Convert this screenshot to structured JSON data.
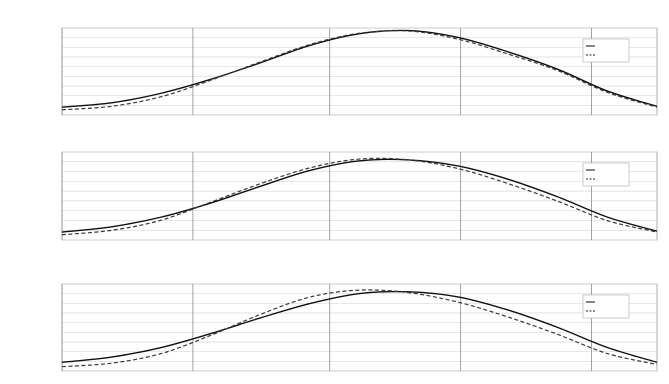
{
  "chart_data": [
    {
      "type": "line",
      "title": "",
      "xlabel": "",
      "ylabel": "",
      "panel_label": "",
      "x": [
        0,
        1,
        2,
        3,
        4,
        5,
        6,
        7,
        8,
        9,
        10,
        11,
        12
      ],
      "ylim": [
        -1,
        1
      ],
      "yticks": [],
      "xtick_labels": [
        "",
        "",
        "",
        ""
      ],
      "series": [
        {
          "name": "",
          "style": "solid",
          "values": [
            -0.82,
            -0.72,
            -0.5,
            -0.18,
            0.2,
            0.6,
            0.87,
            0.94,
            0.78,
            0.45,
            0.05,
            -0.45,
            -0.8
          ]
        },
        {
          "name": "",
          "style": "dashed",
          "values": [
            -0.88,
            -0.8,
            -0.58,
            -0.2,
            0.22,
            0.62,
            0.88,
            0.93,
            0.74,
            0.4,
            0.02,
            -0.48,
            -0.82
          ]
        }
      ]
    },
    {
      "type": "line",
      "title": "",
      "xlabel": "",
      "ylabel": "",
      "panel_label": "",
      "x": [
        0,
        1,
        2,
        3,
        4,
        5,
        6,
        7,
        8,
        9,
        10,
        11,
        12
      ],
      "ylim": [
        -1,
        1
      ],
      "yticks": [],
      "xtick_labels": [
        "",
        "",
        "",
        ""
      ],
      "series": [
        {
          "name": "",
          "style": "solid",
          "values": [
            -0.82,
            -0.7,
            -0.48,
            -0.16,
            0.22,
            0.58,
            0.8,
            0.82,
            0.68,
            0.38,
            -0.02,
            -0.48,
            -0.8
          ]
        },
        {
          "name": "",
          "style": "dashed",
          "values": [
            -0.88,
            -0.78,
            -0.55,
            -0.14,
            0.28,
            0.64,
            0.84,
            0.82,
            0.62,
            0.28,
            -0.12,
            -0.56,
            -0.82
          ]
        }
      ]
    },
    {
      "type": "line",
      "title": "",
      "xlabel": "",
      "ylabel": "",
      "panel_label": "",
      "x": [
        0,
        1,
        2,
        3,
        4,
        5,
        6,
        7,
        8,
        9,
        10,
        11,
        12
      ],
      "ylim": [
        -1,
        1
      ],
      "yticks": [],
      "xtick_labels": [
        "",
        "",
        "",
        ""
      ],
      "series": [
        {
          "name": "",
          "style": "solid",
          "values": [
            -0.8,
            -0.68,
            -0.46,
            -0.14,
            0.22,
            0.55,
            0.78,
            0.82,
            0.7,
            0.4,
            0.0,
            -0.46,
            -0.8
          ]
        },
        {
          "name": "",
          "style": "dashed",
          "values": [
            -0.9,
            -0.82,
            -0.6,
            -0.18,
            0.3,
            0.7,
            0.86,
            0.8,
            0.58,
            0.24,
            -0.16,
            -0.6,
            -0.85
          ]
        }
      ]
    }
  ]
}
